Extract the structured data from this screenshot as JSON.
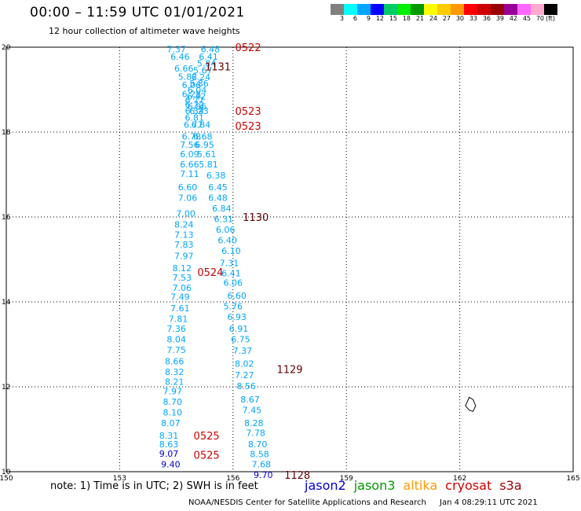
{
  "header": {
    "title": "00:00 – 11:59 UTC 01/01/2021",
    "subtitle": "12 hour collection of altimeter wave heights"
  },
  "legend": {
    "colors": [
      "#808080",
      "#00ffff",
      "#00a6ff",
      "#0000ff",
      "#00cc66",
      "#00ee00",
      "#009900",
      "#ffff00",
      "#ffcc00",
      "#ff9900",
      "#ff0000",
      "#cc0000",
      "#990000",
      "#990099",
      "#ff66ff",
      "#ffaacc",
      "#000000"
    ],
    "labels": [
      "3",
      "6",
      "9",
      "12",
      "15",
      "18",
      "21",
      "24",
      "27",
      "30",
      "33",
      "36",
      "39",
      "42",
      "45",
      "70",
      "(ft)"
    ]
  },
  "footer": {
    "note": "note: 1) Time is in UTC; 2) SWH is in feet",
    "satellites": [
      {
        "name": "jason2",
        "color": "#0000cc"
      },
      {
        "name": "jason3",
        "color": "#009900"
      },
      {
        "name": "altika",
        "color": "#ff9900"
      },
      {
        "name": "cryosat",
        "color": "#cc0000"
      },
      {
        "name": "s3a",
        "color": "#990000"
      }
    ],
    "credit": "NOAA/NESDIS Center for Satellite Applications and Research",
    "timestamp": "Jan  4 08:29:11 UTC 2021"
  },
  "chart_data": {
    "type": "scatter",
    "title": "00:00 – 11:59 UTC 01/01/2021",
    "subtitle": "12 hour collection of altimeter wave heights",
    "xlim": [
      150,
      165
    ],
    "ylim": [
      10,
      20
    ],
    "x_ticks": [
      "150",
      "153",
      "156",
      "159",
      "162",
      "165"
    ],
    "y_ticks": [
      "10",
      "12",
      "14",
      "16",
      "18",
      "20"
    ],
    "grid": true,
    "units": "ft",
    "track_a_color": "#00a6ff",
    "track_b_color": "#00a6ff",
    "track_a": [
      {
        "lat": 19.95,
        "lon": 154.5,
        "swh": "7.37"
      },
      {
        "lat": 19.78,
        "lon": 154.6,
        "swh": "6.46"
      },
      {
        "lat": 19.5,
        "lon": 154.7,
        "swh": "6.66"
      },
      {
        "lat": 19.31,
        "lon": 154.8,
        "swh": "5.82"
      },
      {
        "lat": 19.11,
        "lon": 154.9,
        "swh": "6.06"
      },
      {
        "lat": 18.9,
        "lon": 154.9,
        "swh": "6.28"
      },
      {
        "lat": 18.75,
        "lon": 154.98,
        "swh": "6.77"
      },
      {
        "lat": 18.65,
        "lon": 154.98,
        "swh": "6.72"
      },
      {
        "lat": 18.5,
        "lon": 154.98,
        "swh": "6.34"
      },
      {
        "lat": 18.34,
        "lon": 154.98,
        "swh": "6.81"
      },
      {
        "lat": 18.18,
        "lon": 154.95,
        "swh": "6.77"
      },
      {
        "lat": 17.9,
        "lon": 154.9,
        "swh": "6.78"
      },
      {
        "lat": 17.7,
        "lon": 154.85,
        "swh": "7.56"
      },
      {
        "lat": 17.48,
        "lon": 154.85,
        "swh": "6.09"
      },
      {
        "lat": 17.24,
        "lon": 154.85,
        "swh": "6.66"
      },
      {
        "lat": 17.02,
        "lon": 154.85,
        "swh": "7.11"
      },
      {
        "lat": 16.7,
        "lon": 154.8,
        "swh": "6.60"
      },
      {
        "lat": 16.45,
        "lon": 154.8,
        "swh": "7.06"
      },
      {
        "lat": 16.08,
        "lon": 154.75,
        "swh": "7.00"
      },
      {
        "lat": 15.82,
        "lon": 154.7,
        "swh": "8.24"
      },
      {
        "lat": 15.58,
        "lon": 154.7,
        "swh": "7.13"
      },
      {
        "lat": 15.35,
        "lon": 154.7,
        "swh": "7.83"
      },
      {
        "lat": 15.08,
        "lon": 154.7,
        "swh": "7.97"
      },
      {
        "lat": 14.8,
        "lon": 154.65,
        "swh": "8.12"
      },
      {
        "lat": 14.57,
        "lon": 154.65,
        "swh": "7.53"
      },
      {
        "lat": 14.33,
        "lon": 154.65,
        "swh": "7.06"
      },
      {
        "lat": 14.12,
        "lon": 154.6,
        "swh": "7.49"
      },
      {
        "lat": 13.85,
        "lon": 154.6,
        "swh": "7.61"
      },
      {
        "lat": 13.6,
        "lon": 154.55,
        "swh": "7.81"
      },
      {
        "lat": 13.37,
        "lon": 154.5,
        "swh": "7.36"
      },
      {
        "lat": 13.12,
        "lon": 154.5,
        "swh": "8.04"
      },
      {
        "lat": 12.87,
        "lon": 154.5,
        "swh": "7.75"
      },
      {
        "lat": 12.6,
        "lon": 154.45,
        "swh": "8.66"
      },
      {
        "lat": 12.35,
        "lon": 154.45,
        "swh": "8.32"
      },
      {
        "lat": 12.12,
        "lon": 154.45,
        "swh": "8.21"
      },
      {
        "lat": 11.9,
        "lon": 154.4,
        "swh": "7.97"
      },
      {
        "lat": 11.65,
        "lon": 154.4,
        "swh": "8.70"
      },
      {
        "lat": 11.4,
        "lon": 154.4,
        "swh": "8.10"
      },
      {
        "lat": 11.15,
        "lon": 154.35,
        "swh": "8.07"
      },
      {
        "lat": 10.85,
        "lon": 154.3,
        "swh": "8.31"
      },
      {
        "lat": 10.65,
        "lon": 154.3,
        "swh": "8.63"
      }
    ],
    "track_b": [
      {
        "lat": 19.95,
        "lon": 155.4,
        "swh": "6.48"
      },
      {
        "lat": 19.78,
        "lon": 155.35,
        "swh": "6.41"
      },
      {
        "lat": 19.62,
        "lon": 155.3,
        "swh": "5.84"
      },
      {
        "lat": 19.45,
        "lon": 155.2,
        "swh": "5.67"
      },
      {
        "lat": 19.3,
        "lon": 155.15,
        "swh": "6.24"
      },
      {
        "lat": 19.15,
        "lon": 155.1,
        "swh": "5.86"
      },
      {
        "lat": 18.99,
        "lon": 155.05,
        "swh": "6.04"
      },
      {
        "lat": 18.84,
        "lon": 155.03,
        "swh": "6.42"
      },
      {
        "lat": 18.6,
        "lon": 155.05,
        "swh": "6.86"
      },
      {
        "lat": 18.5,
        "lon": 155.1,
        "swh": "6.23"
      },
      {
        "lat": 18.18,
        "lon": 155.15,
        "swh": "6.84"
      },
      {
        "lat": 17.9,
        "lon": 155.2,
        "swh": "6.68"
      },
      {
        "lat": 17.7,
        "lon": 155.25,
        "swh": "6.95"
      },
      {
        "lat": 17.48,
        "lon": 155.3,
        "swh": "5.61"
      },
      {
        "lat": 17.24,
        "lon": 155.35,
        "swh": "5.81"
      },
      {
        "lat": 16.98,
        "lon": 155.55,
        "swh": "6.38"
      },
      {
        "lat": 16.7,
        "lon": 155.6,
        "swh": "6.45"
      },
      {
        "lat": 16.45,
        "lon": 155.6,
        "swh": "6.48"
      },
      {
        "lat": 16.2,
        "lon": 155.7,
        "swh": "6.84"
      },
      {
        "lat": 15.95,
        "lon": 155.75,
        "swh": "6.31"
      },
      {
        "lat": 15.7,
        "lon": 155.8,
        "swh": "6.06"
      },
      {
        "lat": 15.45,
        "lon": 155.85,
        "swh": "6.40"
      },
      {
        "lat": 15.2,
        "lon": 155.95,
        "swh": "6.10"
      },
      {
        "lat": 14.92,
        "lon": 155.9,
        "swh": "7.31"
      },
      {
        "lat": 14.68,
        "lon": 155.95,
        "swh": "6.41"
      },
      {
        "lat": 14.45,
        "lon": 156.0,
        "swh": "6.06"
      },
      {
        "lat": 14.15,
        "lon": 156.1,
        "swh": "6.60"
      },
      {
        "lat": 13.9,
        "lon": 156.0,
        "swh": "5.76"
      },
      {
        "lat": 13.65,
        "lon": 156.1,
        "swh": "6.93"
      },
      {
        "lat": 13.37,
        "lon": 156.15,
        "swh": "6.91"
      },
      {
        "lat": 13.12,
        "lon": 156.2,
        "swh": "6.75"
      },
      {
        "lat": 12.85,
        "lon": 156.25,
        "swh": "7.37"
      },
      {
        "lat": 12.55,
        "lon": 156.3,
        "swh": "8.02"
      },
      {
        "lat": 12.28,
        "lon": 156.3,
        "swh": "7.27"
      },
      {
        "lat": 12.02,
        "lon": 156.35,
        "swh": "8.56"
      },
      {
        "lat": 11.7,
        "lon": 156.45,
        "swh": "8.67"
      },
      {
        "lat": 11.45,
        "lon": 156.5,
        "swh": "7.45"
      },
      {
        "lat": 11.15,
        "lon": 156.55,
        "swh": "8.28"
      },
      {
        "lat": 10.92,
        "lon": 156.6,
        "swh": "7.78"
      },
      {
        "lat": 10.65,
        "lon": 156.65,
        "swh": "8.70"
      },
      {
        "lat": 10.42,
        "lon": 156.7,
        "swh": "8.58"
      },
      {
        "lat": 10.18,
        "lon": 156.75,
        "swh": "7.68"
      }
    ],
    "extra_points": [
      {
        "lat": 10.43,
        "lon": 154.3,
        "swh": "9.07",
        "color": "#0000cc"
      },
      {
        "lat": 10.18,
        "lon": 154.35,
        "swh": "9.40",
        "color": "#0000cc"
      },
      {
        "lat": 9.93,
        "lon": 156.8,
        "swh": "9.70",
        "color": "#0000cc"
      }
    ],
    "time_labels": [
      {
        "lat": 20.0,
        "lon": 156.4,
        "text": "0522",
        "color": "#cc0000"
      },
      {
        "lat": 19.55,
        "lon": 155.6,
        "text": "1131",
        "color": "#660000"
      },
      {
        "lat": 18.5,
        "lon": 156.4,
        "text": "0523",
        "color": "#cc0000"
      },
      {
        "lat": 18.15,
        "lon": 156.4,
        "text": "0523",
        "color": "#cc0000"
      },
      {
        "lat": 16.0,
        "lon": 156.6,
        "text": "1130",
        "color": "#660000"
      },
      {
        "lat": 14.7,
        "lon": 155.4,
        "text": "0524",
        "color": "#cc0000"
      },
      {
        "lat": 12.42,
        "lon": 157.5,
        "text": "1129",
        "color": "#660000"
      },
      {
        "lat": 10.85,
        "lon": 155.3,
        "text": "0525",
        "color": "#cc0000"
      },
      {
        "lat": 10.4,
        "lon": 155.3,
        "text": "0525",
        "color": "#cc0000"
      },
      {
        "lat": 9.93,
        "lon": 157.7,
        "text": "1128",
        "color": "#660000"
      }
    ],
    "island": [
      {
        "lat": 11.65,
        "lon": 162.2
      },
      {
        "lat": 11.75,
        "lon": 162.25
      },
      {
        "lat": 11.7,
        "lon": 162.35
      },
      {
        "lat": 11.55,
        "lon": 162.42
      },
      {
        "lat": 11.42,
        "lon": 162.35
      },
      {
        "lat": 11.45,
        "lon": 162.25
      },
      {
        "lat": 11.55,
        "lon": 162.15
      },
      {
        "lat": 11.65,
        "lon": 162.2
      }
    ]
  }
}
